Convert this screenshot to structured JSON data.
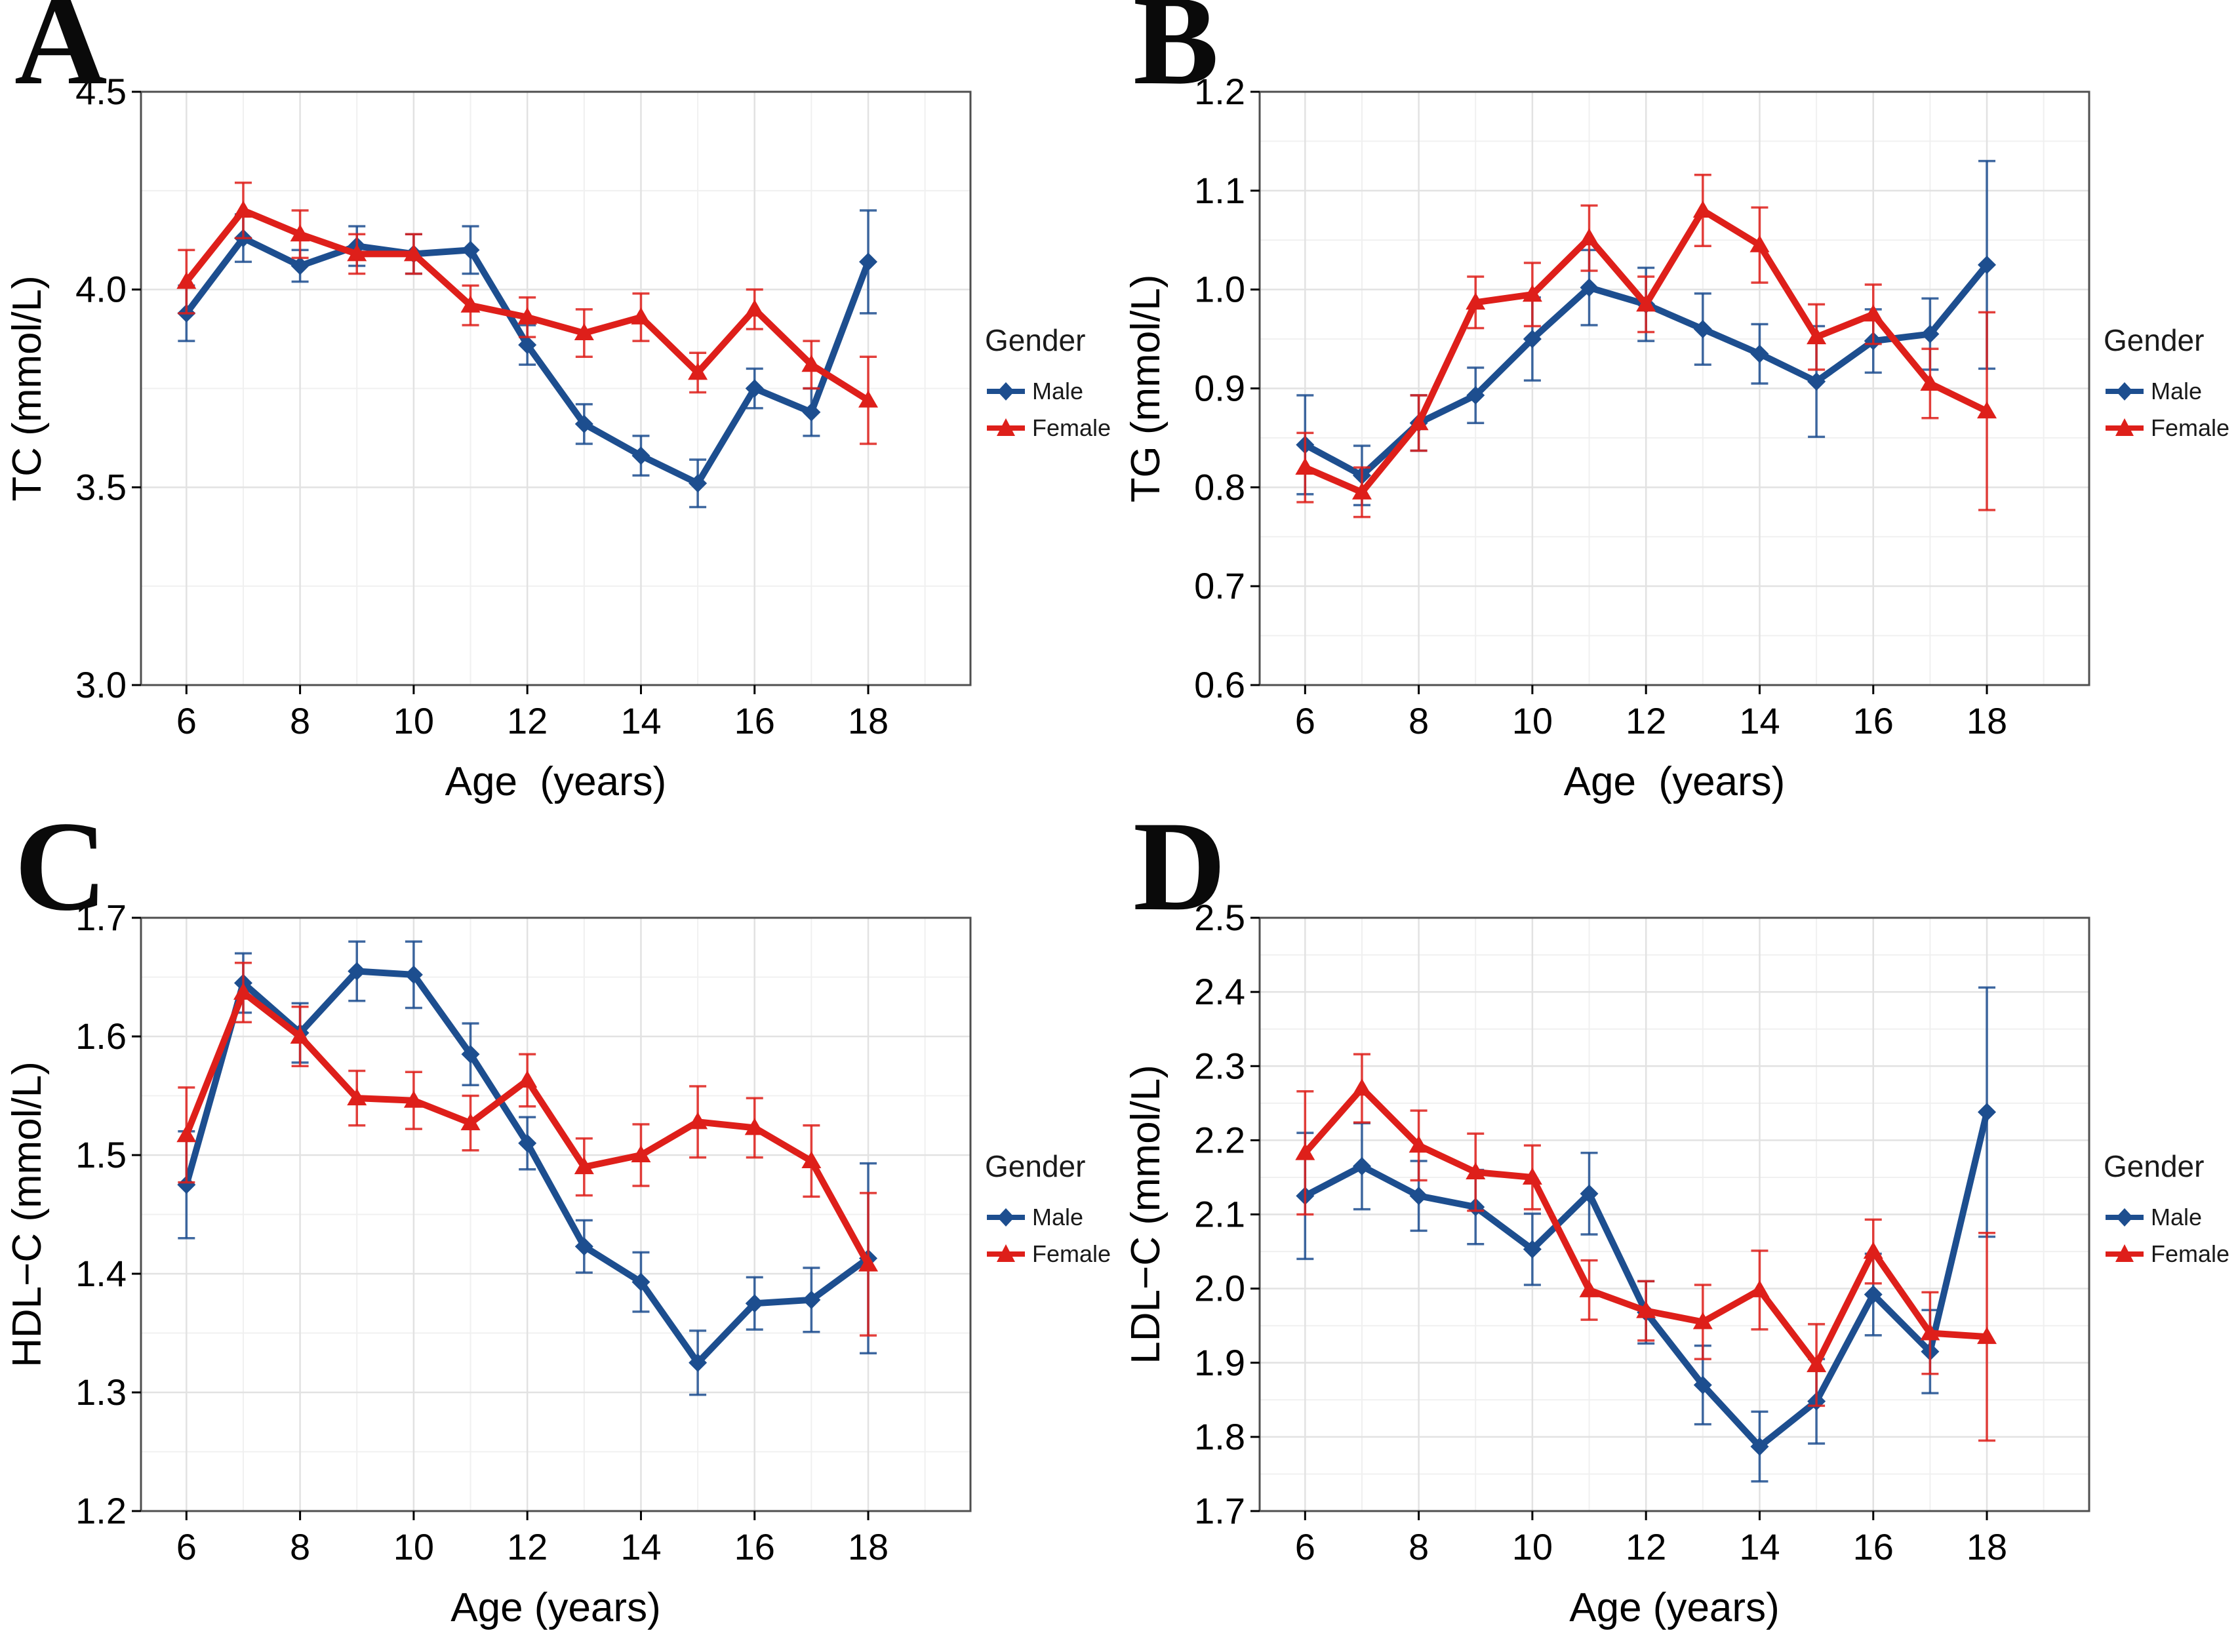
{
  "figure_background": "#ffffff",
  "colors": {
    "male": "#1d4e8f",
    "female": "#de1f1a",
    "grid_major": "#e2e2e2",
    "grid_minor": "#f0f0f0",
    "panel_border": "#4f4f4f",
    "tick": "#000000",
    "text": "#1a1a1a"
  },
  "legend": {
    "title": "Gender",
    "items": [
      {
        "label": "Male",
        "series": "male",
        "marker": "diamond"
      },
      {
        "label": "Female",
        "series": "female",
        "marker": "triangle"
      }
    ]
  },
  "chart_data": [
    {
      "panel_label": "A",
      "type": "line",
      "title": "",
      "xlabel": "Age  (years)",
      "ylabel": "TC (mmol/L)",
      "xlim": [
        5.2,
        19.8
      ],
      "ylim": [
        3.0,
        4.5
      ],
      "xtick_values": [
        6,
        8,
        10,
        12,
        14,
        16,
        18
      ],
      "xtick_labels": [
        "6",
        "8",
        "10",
        "12",
        "14",
        "16",
        "18"
      ],
      "xminor": [
        7,
        9,
        11,
        13,
        15,
        17,
        19
      ],
      "ytick_values": [
        3.0,
        3.5,
        4.0,
        4.5
      ],
      "ytick_labels": [
        "3.0",
        "3.5",
        "4.0",
        "4.5"
      ],
      "yminor": [
        3.25,
        3.75,
        4.25
      ],
      "x": [
        6,
        7,
        8,
        9,
        10,
        11,
        12,
        13,
        14,
        15,
        16,
        17,
        18
      ],
      "series": [
        {
          "name": "Male",
          "color_key": "male",
          "marker": "diamond",
          "values": [
            3.94,
            4.13,
            4.06,
            4.11,
            4.09,
            4.1,
            3.86,
            3.66,
            3.58,
            3.51,
            3.75,
            3.69,
            4.07
          ],
          "err": [
            0.07,
            0.06,
            0.04,
            0.05,
            0.05,
            0.06,
            0.05,
            0.05,
            0.05,
            0.06,
            0.05,
            0.06,
            0.13
          ]
        },
        {
          "name": "Female",
          "color_key": "female",
          "marker": "triangle",
          "values": [
            4.02,
            4.2,
            4.14,
            4.09,
            4.09,
            3.96,
            3.93,
            3.89,
            3.93,
            3.79,
            3.95,
            3.81,
            3.72
          ],
          "err": [
            0.08,
            0.07,
            0.06,
            0.05,
            0.05,
            0.05,
            0.05,
            0.06,
            0.06,
            0.05,
            0.05,
            0.06,
            0.11
          ]
        }
      ]
    },
    {
      "panel_label": "B",
      "type": "line",
      "title": "",
      "xlabel": "Age  (years)",
      "ylabel": "TG (mmol/L)",
      "xlim": [
        5.2,
        19.8
      ],
      "ylim": [
        0.6,
        1.2
      ],
      "xtick_values": [
        6,
        8,
        10,
        12,
        14,
        16,
        18
      ],
      "xtick_labels": [
        "6",
        "8",
        "10",
        "12",
        "14",
        "16",
        "18"
      ],
      "xminor": [
        7,
        9,
        11,
        13,
        15,
        17,
        19
      ],
      "ytick_values": [
        0.6,
        0.7,
        0.8,
        0.9,
        1.0,
        1.1,
        1.2
      ],
      "ytick_labels": [
        "0.6",
        "0.7",
        "0.8",
        "0.9",
        "1.0",
        "1.1",
        "1.2"
      ],
      "yminor": [
        0.65,
        0.75,
        0.85,
        0.95,
        1.05,
        1.15
      ],
      "x": [
        6,
        7,
        8,
        9,
        10,
        11,
        12,
        13,
        14,
        15,
        16,
        17,
        18
      ],
      "series": [
        {
          "name": "Male",
          "color_key": "male",
          "marker": "diamond",
          "values": [
            0.843,
            0.812,
            0.865,
            0.893,
            0.95,
            1.002,
            0.985,
            0.96,
            0.935,
            0.907,
            0.948,
            0.955,
            1.025
          ],
          "err": [
            0.05,
            0.03,
            0.028,
            0.028,
            0.042,
            0.038,
            0.037,
            0.036,
            0.03,
            0.056,
            0.032,
            0.036,
            0.105
          ]
        },
        {
          "name": "Female",
          "color_key": "female",
          "marker": "triangle",
          "values": [
            0.82,
            0.795,
            0.865,
            0.987,
            0.995,
            1.052,
            0.985,
            1.08,
            1.045,
            0.952,
            0.975,
            0.905,
            0.877
          ],
          "err": [
            0.035,
            0.025,
            0.028,
            0.026,
            0.032,
            0.033,
            0.028,
            0.036,
            0.038,
            0.033,
            0.03,
            0.035,
            0.1
          ]
        }
      ]
    },
    {
      "panel_label": "C",
      "type": "line",
      "title": "",
      "xlabel": "Age (years)",
      "ylabel": "HDL−C (mmol/L)",
      "xlim": [
        5.2,
        19.8
      ],
      "ylim": [
        1.2,
        1.7
      ],
      "xtick_values": [
        6,
        8,
        10,
        12,
        14,
        16,
        18
      ],
      "xtick_labels": [
        "6",
        "8",
        "10",
        "12",
        "14",
        "16",
        "18"
      ],
      "xminor": [
        7,
        9,
        11,
        13,
        15,
        17,
        19
      ],
      "ytick_values": [
        1.2,
        1.3,
        1.4,
        1.5,
        1.6,
        1.7
      ],
      "ytick_labels": [
        "1.2",
        "1.3",
        "1.4",
        "1.5",
        "1.6",
        "1.7"
      ],
      "yminor": [
        1.25,
        1.35,
        1.45,
        1.55,
        1.65
      ],
      "x": [
        6,
        7,
        8,
        9,
        10,
        11,
        12,
        13,
        14,
        15,
        16,
        17,
        18
      ],
      "series": [
        {
          "name": "Male",
          "color_key": "male",
          "marker": "diamond",
          "values": [
            1.475,
            1.645,
            1.603,
            1.655,
            1.652,
            1.585,
            1.51,
            1.423,
            1.393,
            1.325,
            1.375,
            1.378,
            1.413
          ],
          "err": [
            0.045,
            0.025,
            0.025,
            0.025,
            0.028,
            0.026,
            0.022,
            0.022,
            0.025,
            0.027,
            0.022,
            0.027,
            0.08
          ]
        },
        {
          "name": "Female",
          "color_key": "female",
          "marker": "triangle",
          "values": [
            1.517,
            1.637,
            1.6,
            1.548,
            1.546,
            1.527,
            1.563,
            1.49,
            1.5,
            1.528,
            1.523,
            1.495,
            1.408
          ],
          "err": [
            0.04,
            0.025,
            0.025,
            0.023,
            0.024,
            0.023,
            0.022,
            0.024,
            0.026,
            0.03,
            0.025,
            0.03,
            0.06
          ]
        }
      ]
    },
    {
      "panel_label": "D",
      "type": "line",
      "title": "",
      "xlabel": "Age (years)",
      "ylabel": "LDL−C (mmol/L)",
      "xlim": [
        5.2,
        19.8
      ],
      "ylim": [
        1.7,
        2.5
      ],
      "xtick_values": [
        6,
        8,
        10,
        12,
        14,
        16,
        18
      ],
      "xtick_labels": [
        "6",
        "8",
        "10",
        "12",
        "14",
        "16",
        "18"
      ],
      "xminor": [
        7,
        9,
        11,
        13,
        15,
        17,
        19
      ],
      "ytick_values": [
        1.7,
        1.8,
        1.9,
        2.0,
        2.1,
        2.2,
        2.3,
        2.4,
        2.5
      ],
      "ytick_labels": [
        "1.7",
        "1.8",
        "1.9",
        "2.0",
        "2.1",
        "2.2",
        "2.3",
        "2.4",
        "2.5"
      ],
      "yminor": [
        1.75,
        1.85,
        1.95,
        2.05,
        2.15,
        2.25,
        2.35,
        2.45
      ],
      "x": [
        6,
        7,
        8,
        9,
        10,
        11,
        12,
        13,
        14,
        15,
        16,
        17,
        18
      ],
      "series": [
        {
          "name": "Male",
          "color_key": "male",
          "marker": "diamond",
          "values": [
            2.125,
            2.165,
            2.125,
            2.11,
            2.053,
            2.128,
            1.968,
            1.87,
            1.787,
            1.848,
            1.992,
            1.915,
            2.238
          ],
          "err": [
            0.085,
            0.058,
            0.047,
            0.05,
            0.048,
            0.055,
            0.042,
            0.053,
            0.047,
            0.057,
            0.055,
            0.056,
            0.168
          ]
        },
        {
          "name": "Female",
          "color_key": "female",
          "marker": "triangle",
          "values": [
            2.183,
            2.27,
            2.193,
            2.157,
            2.15,
            1.998,
            1.97,
            1.955,
            1.998,
            1.897,
            2.05,
            1.94,
            1.935
          ],
          "err": [
            0.083,
            0.046,
            0.047,
            0.052,
            0.043,
            0.04,
            0.04,
            0.05,
            0.053,
            0.055,
            0.043,
            0.055,
            0.14
          ]
        }
      ]
    }
  ]
}
